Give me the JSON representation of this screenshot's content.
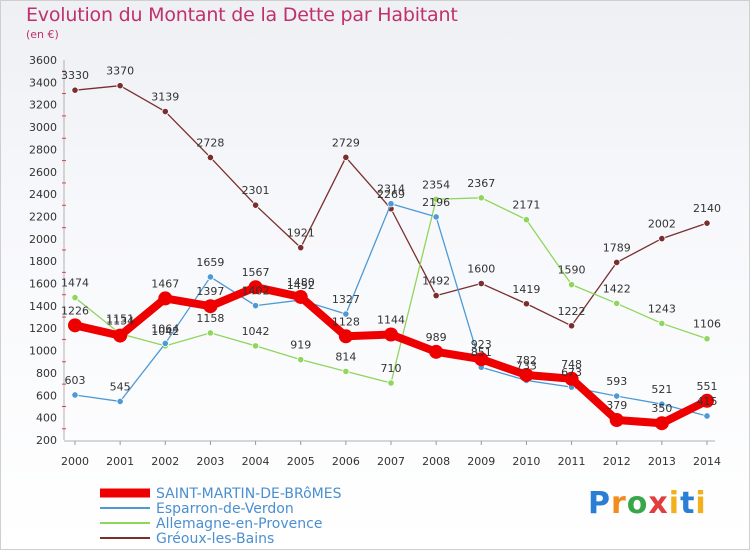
{
  "header": {
    "title": "Evolution du Montant de la Dette par Habitant",
    "subtitle": "(en €)"
  },
  "logo": {
    "text": "Proxiti"
  },
  "chart_data": {
    "type": "line",
    "title": "Evolution du Montant de la Dette par Habitant",
    "ylabel": "(en €)",
    "xlabel": "",
    "x": [
      "2000",
      "2001",
      "2002",
      "2003",
      "2004",
      "2005",
      "2006",
      "2007",
      "2008",
      "2009",
      "2010",
      "2011",
      "2012",
      "2013",
      "2014"
    ],
    "ylim": [
      200,
      3600
    ],
    "yticks": [
      200,
      400,
      600,
      800,
      1000,
      1200,
      1400,
      1600,
      1800,
      2000,
      2200,
      2400,
      2600,
      2800,
      3000,
      3200,
      3400,
      3600
    ],
    "grid": false,
    "legend_position": "bottom-left",
    "series": [
      {
        "name": "SAINT-MARTIN-DE-BRôMES",
        "color": "#ee0000",
        "width": 8,
        "values": [
          1226,
          1134,
          1467,
          1397,
          1567,
          1480,
          1128,
          1144,
          989,
          923,
          782,
          748,
          379,
          350,
          551
        ],
        "labels": [
          "1226",
          "1134",
          "1467",
          "1397",
          "1567",
          "1480",
          "1128",
          "1144",
          "989",
          "923",
          "782",
          "748",
          "379",
          "350",
          "551"
        ]
      },
      {
        "name": "Esparron-de-Verdon",
        "color": "#4d9ad6",
        "width": 1.3,
        "values": [
          603,
          545,
          1064,
          1659,
          1402,
          1452,
          1327,
          2314,
          2196,
          851,
          733,
          673,
          593,
          521,
          415
        ],
        "labels": [
          "603",
          "545",
          "1064",
          "1659",
          "1402",
          "1452",
          "1327",
          "2314",
          "2196",
          "851",
          "733",
          "673",
          "593",
          "521",
          "415"
        ]
      },
      {
        "name": "Allemagne-en-Provence",
        "color": "#8fd65c",
        "width": 1.3,
        "values": [
          1474,
          1151,
          1042,
          1158,
          1042,
          919,
          814,
          710,
          2354,
          2367,
          2171,
          1590,
          1422,
          1243,
          1106
        ],
        "labels": [
          "1474",
          "1151",
          "1042",
          "1158",
          "1042",
          "919",
          "814",
          "710",
          "2354",
          "2367",
          "2171",
          "1590",
          "1422",
          "1243",
          "1106"
        ]
      },
      {
        "name": "Gréoux-les-Bains",
        "color": "#7a2f2f",
        "width": 1.3,
        "values": [
          3330,
          3370,
          3139,
          2728,
          2301,
          1921,
          2729,
          2269,
          1492,
          1600,
          1419,
          1222,
          1789,
          2002,
          2140
        ],
        "labels": [
          "3330",
          "3370",
          "3139",
          "2728",
          "2301",
          "1921",
          "2729",
          "2269",
          "1492",
          "1600",
          "1419",
          "1222",
          "1789",
          "2002",
          "2140"
        ]
      }
    ]
  }
}
